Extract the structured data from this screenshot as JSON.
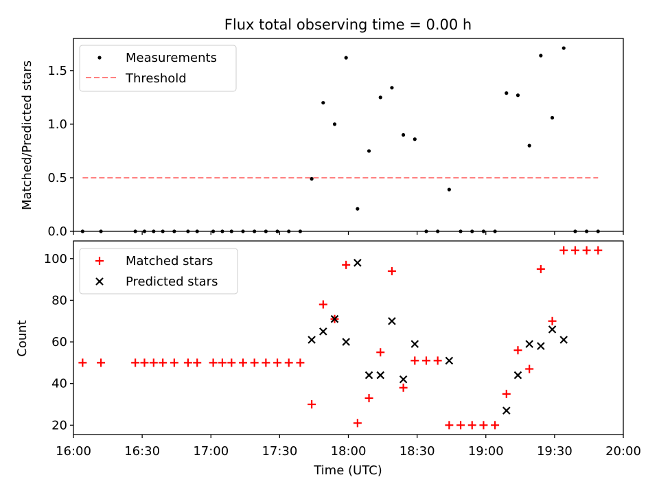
{
  "chart_data": [
    {
      "type": "scatter",
      "title": "Flux total observing time = 0.00 h",
      "xlabel": "",
      "ylabel": "Matched/Predicted stars",
      "xlim": [
        "16:00",
        "20:00"
      ],
      "ylim": [
        0,
        1.8
      ],
      "yticks": [
        0.0,
        0.5,
        1.0,
        1.5
      ],
      "ytick_labels": [
        "0.0",
        "0.5",
        "1.0",
        "1.5"
      ],
      "legend_position": "upper-left",
      "grid": false,
      "series": [
        {
          "name": "Measurements",
          "kind": "dot",
          "color": "#000000",
          "x": [
            "16:04",
            "16:12",
            "16:27",
            "16:31",
            "16:35",
            "16:39",
            "16:44",
            "16:50",
            "16:54",
            "17:01",
            "17:05",
            "17:09",
            "17:14",
            "17:19",
            "17:24",
            "17:29",
            "17:34",
            "17:39",
            "17:44",
            "17:49",
            "17:54",
            "17:59",
            "18:04",
            "18:09",
            "18:14",
            "18:19",
            "18:24",
            "18:29",
            "18:34",
            "18:39",
            "18:44",
            "18:49",
            "18:54",
            "18:59",
            "19:04",
            "19:09",
            "19:14",
            "19:19",
            "19:24",
            "19:29",
            "19:34",
            "19:39",
            "19:44",
            "19:49"
          ],
          "y": [
            0,
            0,
            0,
            0,
            0,
            0,
            0,
            0,
            0,
            0,
            0,
            0,
            0,
            0,
            0,
            0,
            0,
            0,
            0.49,
            1.2,
            1.0,
            1.62,
            0.21,
            0.75,
            1.25,
            1.34,
            0.9,
            0.86,
            0,
            0,
            0.39,
            0,
            0,
            0,
            0,
            1.29,
            1.27,
            0.8,
            1.64,
            1.06,
            1.71,
            0,
            0,
            0
          ]
        },
        {
          "name": "Threshold",
          "kind": "dashed-line",
          "color": "#ff8080",
          "x": [
            "16:04",
            "19:49"
          ],
          "y": [
            0.5,
            0.5
          ]
        }
      ]
    },
    {
      "type": "scatter",
      "title": "",
      "xlabel": "Time (UTC)",
      "ylabel": "Count",
      "xlim": [
        "16:00",
        "20:00"
      ],
      "xticks": [
        "16:00",
        "16:30",
        "17:00",
        "17:30",
        "18:00",
        "18:30",
        "19:00",
        "19:30",
        "20:00"
      ],
      "ylim": [
        15.5,
        108.5
      ],
      "yticks": [
        20,
        40,
        60,
        80,
        100
      ],
      "ytick_labels": [
        "20",
        "40",
        "60",
        "80",
        "100"
      ],
      "legend_position": "upper-left",
      "grid": false,
      "series": [
        {
          "name": "Matched stars",
          "marker": "+",
          "color": "#ff0000",
          "x": [
            "16:04",
            "16:12",
            "16:27",
            "16:31",
            "16:35",
            "16:39",
            "16:44",
            "16:50",
            "16:54",
            "17:01",
            "17:05",
            "17:09",
            "17:14",
            "17:19",
            "17:24",
            "17:29",
            "17:34",
            "17:39",
            "17:44",
            "17:49",
            "17:54",
            "17:59",
            "18:04",
            "18:09",
            "18:14",
            "18:19",
            "18:24",
            "18:29",
            "18:34",
            "18:39",
            "18:44",
            "18:49",
            "18:54",
            "18:59",
            "19:04",
            "19:09",
            "19:14",
            "19:19",
            "19:24",
            "19:29",
            "19:34",
            "19:39",
            "19:44",
            "19:49"
          ],
          "y": [
            50,
            50,
            50,
            50,
            50,
            50,
            50,
            50,
            50,
            50,
            50,
            50,
            50,
            50,
            50,
            50,
            50,
            50,
            30,
            78,
            71,
            97,
            21,
            33,
            55,
            94,
            38,
            51,
            51,
            51,
            20,
            20,
            20,
            20,
            20,
            35,
            56,
            47,
            95,
            70,
            104,
            104,
            104,
            104
          ]
        },
        {
          "name": "Predicted stars",
          "marker": "x",
          "color": "#000000",
          "x": [
            "17:44",
            "17:49",
            "17:54",
            "17:59",
            "18:04",
            "18:09",
            "18:14",
            "18:19",
            "18:24",
            "18:29",
            "18:44",
            "19:09",
            "19:14",
            "19:19",
            "19:24",
            "19:29",
            "19:34"
          ],
          "y": [
            61,
            65,
            71,
            60,
            98,
            44,
            44,
            70,
            42,
            59,
            51,
            27,
            44,
            59,
            58,
            66,
            61
          ]
        }
      ]
    }
  ]
}
